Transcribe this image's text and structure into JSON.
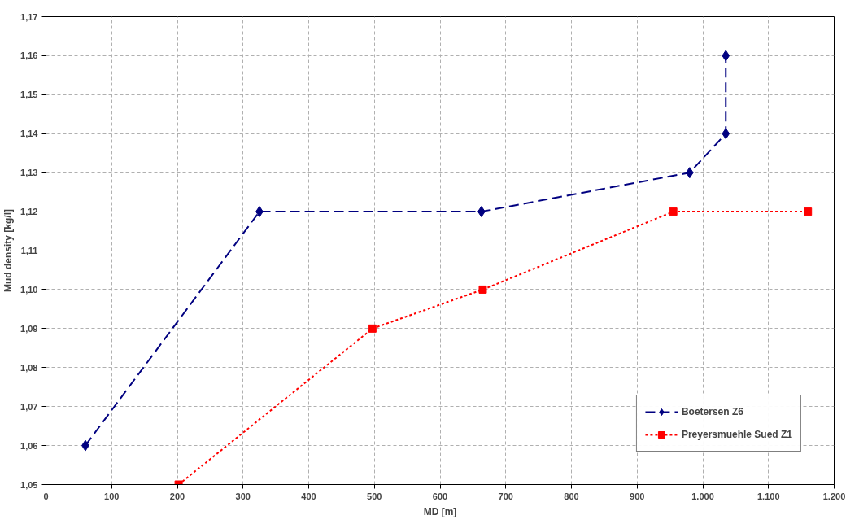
{
  "chart_data": {
    "type": "line",
    "xlabel": "MD [m]",
    "ylabel": "Mud density [kg/l]",
    "xlim": [
      0,
      1200
    ],
    "ylim": [
      1.05,
      1.17
    ],
    "xticks": [
      0,
      100,
      200,
      300,
      400,
      500,
      600,
      700,
      800,
      900,
      {
        "value": 1000,
        "label": "1.000"
      },
      {
        "value": 1100,
        "label": "1.100"
      },
      {
        "value": 1200,
        "label": "1.200"
      }
    ],
    "yticks": [
      {
        "value": 1.05,
        "label": "1,05"
      },
      {
        "value": 1.06,
        "label": "1,06"
      },
      {
        "value": 1.07,
        "label": "1,07"
      },
      {
        "value": 1.08,
        "label": "1,08"
      },
      {
        "value": 1.09,
        "label": "1,09"
      },
      {
        "value": 1.1,
        "label": "1,10"
      },
      {
        "value": 1.11,
        "label": "1,11"
      },
      {
        "value": 1.12,
        "label": "1,12"
      },
      {
        "value": 1.13,
        "label": "1,13"
      },
      {
        "value": 1.14,
        "label": "1,14"
      },
      {
        "value": 1.15,
        "label": "1,15"
      },
      {
        "value": 1.16,
        "label": "1,16"
      },
      {
        "value": 1.17,
        "label": "1,17"
      }
    ],
    "grid": true,
    "legend": "bottom right",
    "series": [
      {
        "name": "Boetersen Z6",
        "color": "#000080",
        "marker": "diamond",
        "line_style": "dashed",
        "x": [
          60,
          325,
          663,
          980,
          1035,
          1035
        ],
        "values": [
          1.06,
          1.12,
          1.12,
          1.13,
          1.14,
          1.16
        ]
      },
      {
        "name": "Preyersmuehle Sued Z1",
        "color": "#ff0000",
        "marker": "square",
        "line_style": "dotted",
        "x": [
          202,
          497,
          665,
          955,
          1160
        ],
        "values": [
          1.05,
          1.09,
          1.1,
          1.12,
          1.12
        ]
      }
    ]
  }
}
